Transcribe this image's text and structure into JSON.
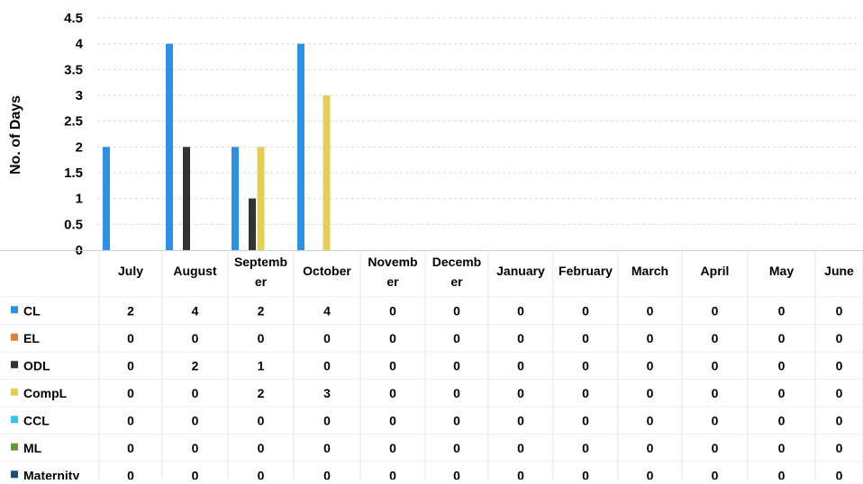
{
  "chart_data": {
    "type": "bar",
    "title": "",
    "xlabel": "",
    "ylabel": "No. of Days",
    "ylim": [
      0,
      4.5
    ],
    "yticks": [
      "0",
      "0.5",
      "1",
      "1.5",
      "2",
      "2.5",
      "3",
      "3.5",
      "4",
      "4.5"
    ],
    "grid": true,
    "legend_placement": "left, inside data table",
    "categories": [
      "July",
      "August",
      "September",
      "October",
      "November",
      "December",
      "January",
      "February",
      "March",
      "April",
      "May",
      "June"
    ],
    "category_labels": [
      "July",
      "August",
      "Septemb er",
      "October",
      "Novemb er",
      "Decemb er",
      "January",
      "February",
      "March",
      "April",
      "May",
      "June"
    ],
    "series": [
      {
        "name": "CL",
        "color": "#2f8fe0",
        "values": [
          2,
          4,
          2,
          4,
          0,
          0,
          0,
          0,
          0,
          0,
          0,
          0
        ]
      },
      {
        "name": "EL",
        "color": "#e27b3c",
        "values": [
          0,
          0,
          0,
          0,
          0,
          0,
          0,
          0,
          0,
          0,
          0,
          0
        ]
      },
      {
        "name": "ODL",
        "color": "#333333",
        "values": [
          0,
          2,
          1,
          0,
          0,
          0,
          0,
          0,
          0,
          0,
          0,
          0
        ]
      },
      {
        "name": "CompL",
        "color": "#e3cf55",
        "values": [
          0,
          0,
          2,
          3,
          0,
          0,
          0,
          0,
          0,
          0,
          0,
          0
        ]
      },
      {
        "name": "CCL",
        "color": "#35c2ee",
        "values": [
          0,
          0,
          0,
          0,
          0,
          0,
          0,
          0,
          0,
          0,
          0,
          0
        ]
      },
      {
        "name": "ML",
        "color": "#5f9a37",
        "values": [
          0,
          0,
          0,
          0,
          0,
          0,
          0,
          0,
          0,
          0,
          0,
          0
        ]
      },
      {
        "name": "Maternity",
        "color": "#1f4d7a",
        "values": [
          0,
          0,
          0,
          0,
          0,
          0,
          0,
          0,
          0,
          0,
          0,
          0
        ]
      }
    ]
  }
}
